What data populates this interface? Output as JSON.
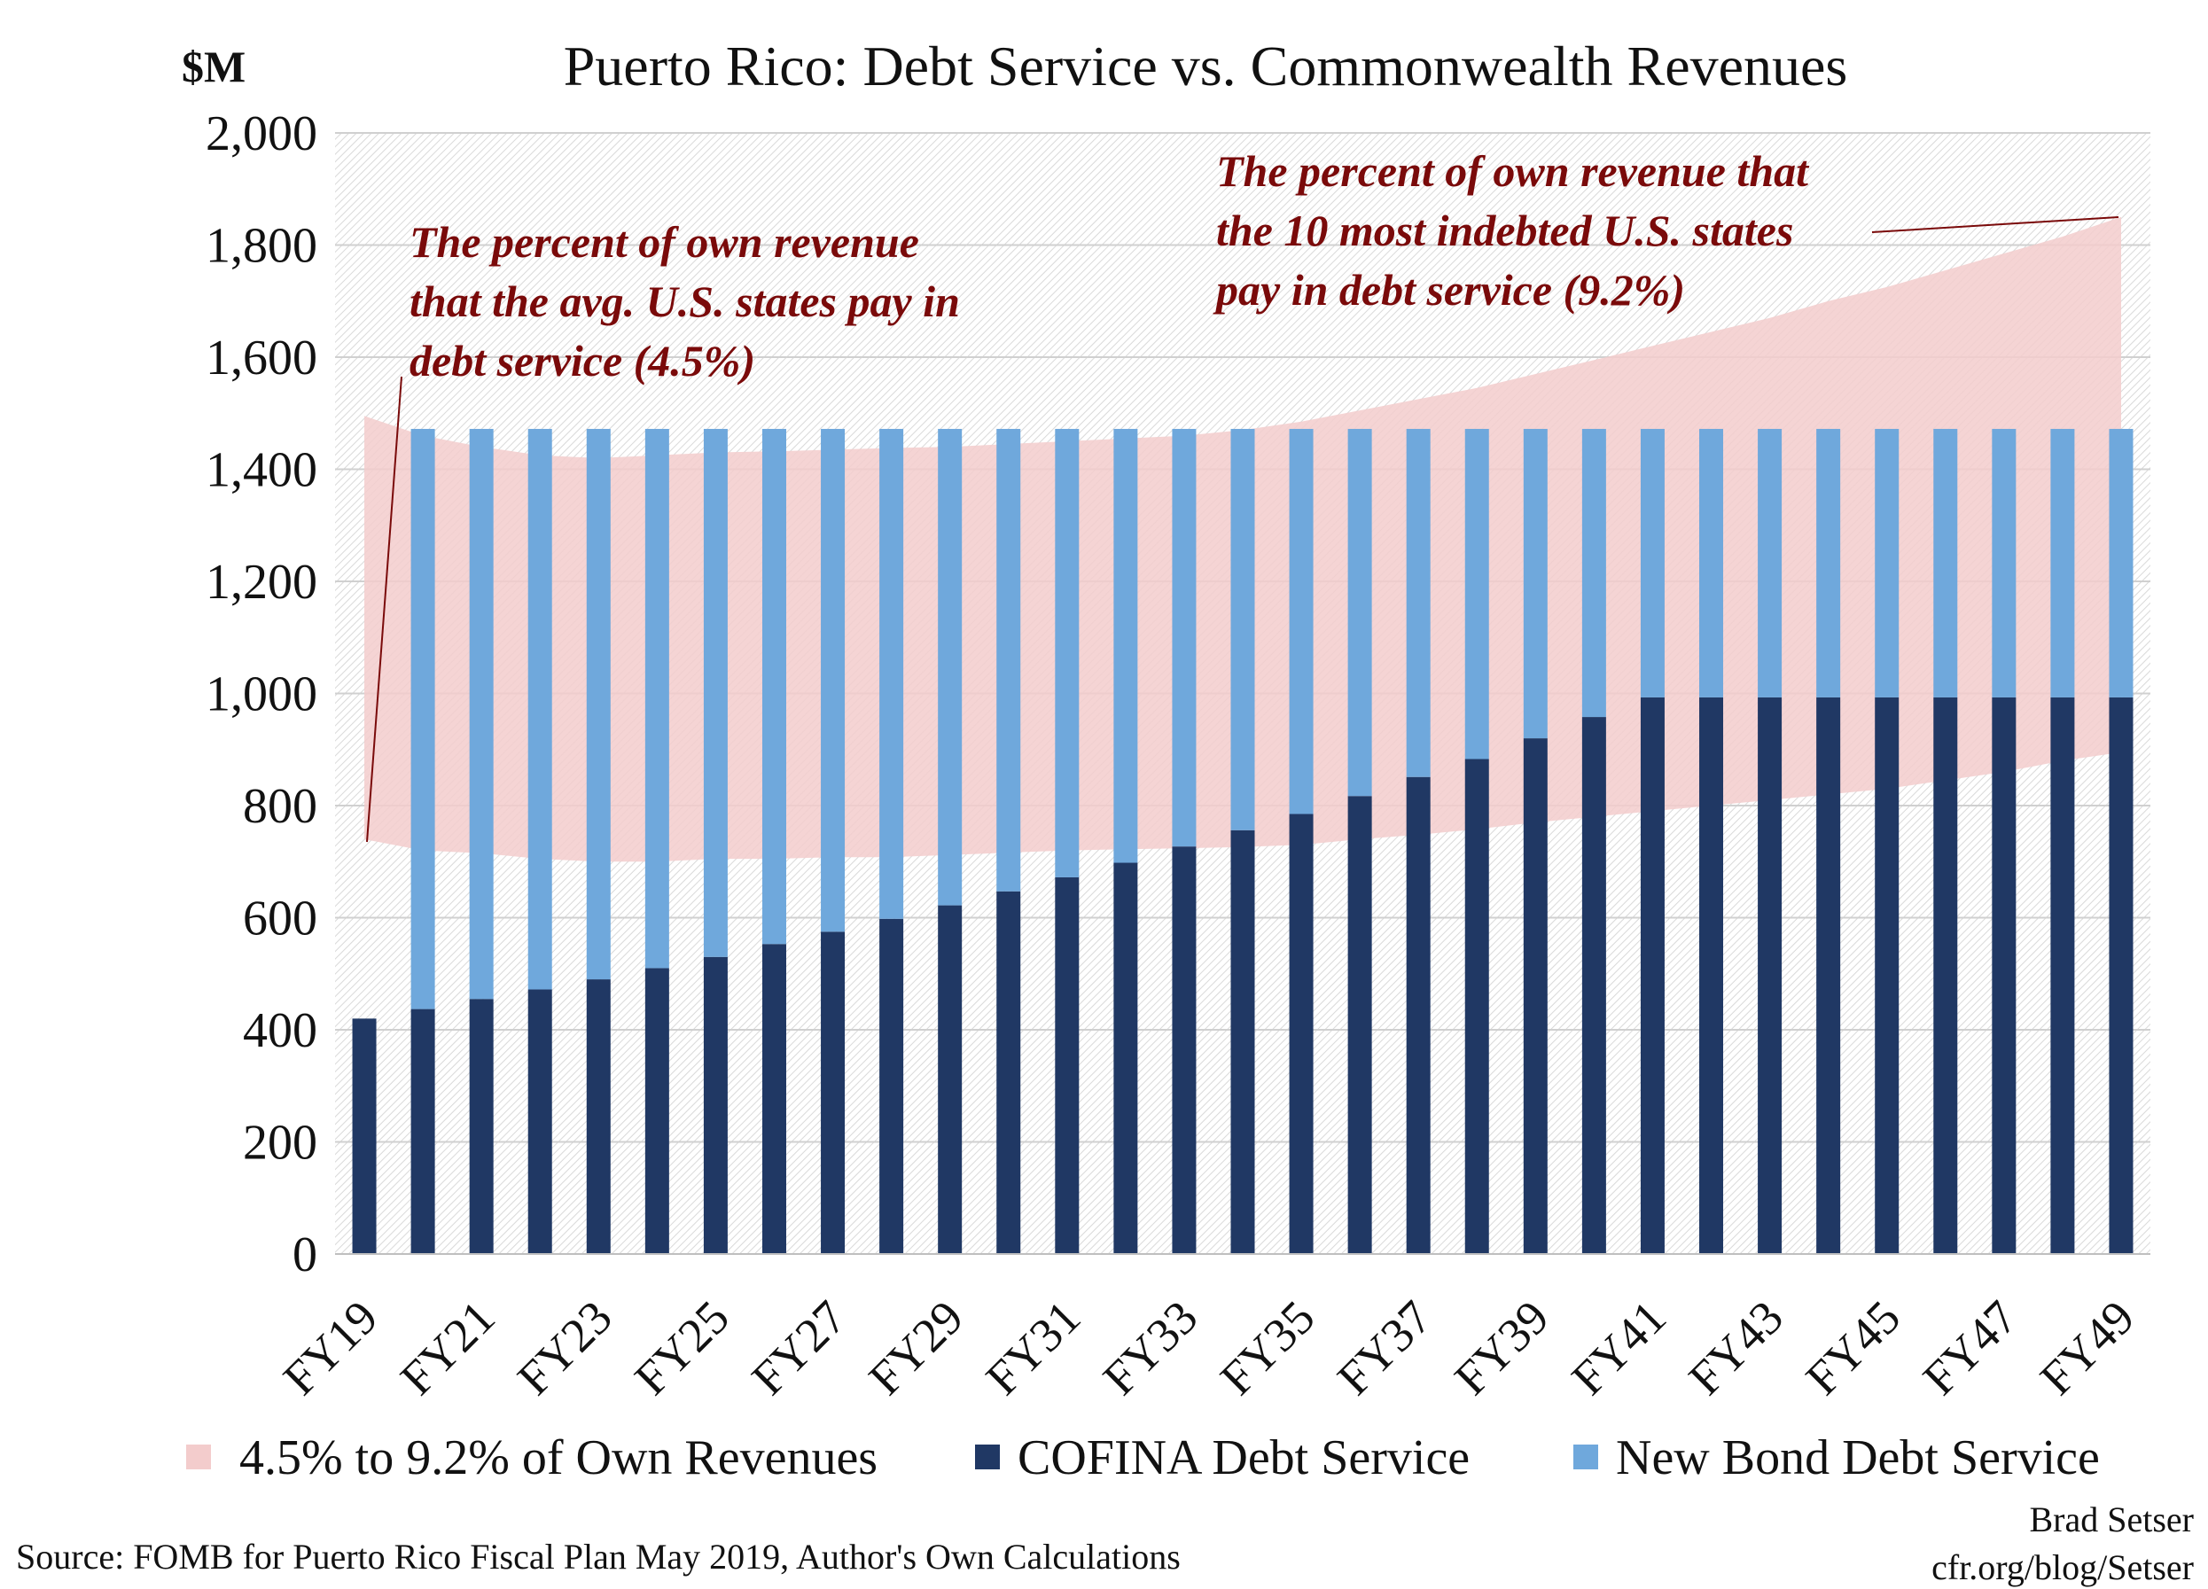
{
  "chart_data": {
    "type": "bar",
    "title": "Puerto Rico: Debt Service vs. Commonwealth Revenues",
    "unit_label": "$M",
    "ylim": [
      0,
      2000
    ],
    "yticks": [
      0,
      200,
      400,
      600,
      800,
      1000,
      1200,
      1400,
      1600,
      1800,
      2000
    ],
    "ytick_labels": [
      "0",
      "200",
      "400",
      "600",
      "800",
      "1,000",
      "1,200",
      "1,400",
      "1,600",
      "1,800",
      "2,000"
    ],
    "grid": true,
    "stacked": true,
    "categories": [
      "FY19",
      "FY20",
      "FY21",
      "FY22",
      "FY23",
      "FY24",
      "FY25",
      "FY26",
      "FY27",
      "FY28",
      "FY29",
      "FY30",
      "FY31",
      "FY32",
      "FY33",
      "FY34",
      "FY35",
      "FY36",
      "FY37",
      "FY38",
      "FY39",
      "FY40",
      "FY41",
      "FY42",
      "FY43",
      "FY44",
      "FY45",
      "FY46",
      "FY47",
      "FY48",
      "FY49"
    ],
    "xtick_labels": [
      "FY19",
      "",
      "FY21",
      "",
      "FY23",
      "",
      "FY25",
      "",
      "FY27",
      "",
      "FY29",
      "",
      "FY31",
      "",
      "FY33",
      "",
      "FY35",
      "",
      "FY37",
      "",
      "FY39",
      "",
      "FY41",
      "",
      "FY43",
      "",
      "FY45",
      "",
      "FY47",
      "",
      "FY49"
    ],
    "band": {
      "name": "4.5% to 9.2% of Own Revenues",
      "color": "#f3cccc",
      "lower": [
        740,
        720,
        715,
        705,
        700,
        700,
        705,
        705,
        708,
        708,
        712,
        716,
        720,
        722,
        724,
        726,
        730,
        740,
        748,
        758,
        770,
        780,
        790,
        800,
        810,
        820,
        830,
        845,
        860,
        880,
        895
      ],
      "upper": [
        1495,
        1460,
        1440,
        1425,
        1420,
        1425,
        1430,
        1432,
        1435,
        1438,
        1440,
        1445,
        1450,
        1455,
        1460,
        1470,
        1485,
        1505,
        1525,
        1545,
        1570,
        1595,
        1620,
        1645,
        1670,
        1700,
        1725,
        1755,
        1785,
        1815,
        1850
      ]
    },
    "series": [
      {
        "name": "COFINA Debt Service",
        "color": "#203864",
        "values": [
          420,
          437,
          455,
          472,
          490,
          510,
          530,
          553,
          575,
          598,
          622,
          647,
          672,
          698,
          727,
          756,
          785,
          817,
          851,
          883,
          920,
          958,
          993,
          993,
          993,
          993,
          993,
          993,
          993,
          993,
          993
        ]
      },
      {
        "name": "New Bond Debt Service",
        "color": "#6fa8dc",
        "values": [
          0,
          1035,
          1017,
          1000,
          982,
          962,
          942,
          919,
          897,
          874,
          850,
          825,
          800,
          774,
          745,
          716,
          687,
          655,
          621,
          589,
          552,
          514,
          479,
          479,
          479,
          479,
          479,
          479,
          479,
          479,
          479
        ]
      }
    ],
    "legend": {
      "position": "bottom",
      "items": [
        "4.5% to 9.2% of Own Revenues",
        "COFINA Debt Service",
        "New Bond Debt Service"
      ]
    },
    "annotations": [
      {
        "lines": [
          "The percent of own revenue",
          "that the avg. U.S. states pay in",
          "debt service (4.5%)"
        ],
        "points_to_category": "FY19",
        "points_to_value": 740
      },
      {
        "lines": [
          "The percent of own revenue that",
          "the 10 most indebted U.S. states",
          "pay in debt service (9.2%)"
        ],
        "points_to_category": "FY49",
        "points_to_value": 1850
      }
    ]
  },
  "footer": {
    "source": "Source: FOMB for Puerto Rico Fiscal Plan May 2019, Author's Own Calculations",
    "credit_name": "Brad Setser",
    "credit_url": "cfr.org/blog/Setser"
  }
}
